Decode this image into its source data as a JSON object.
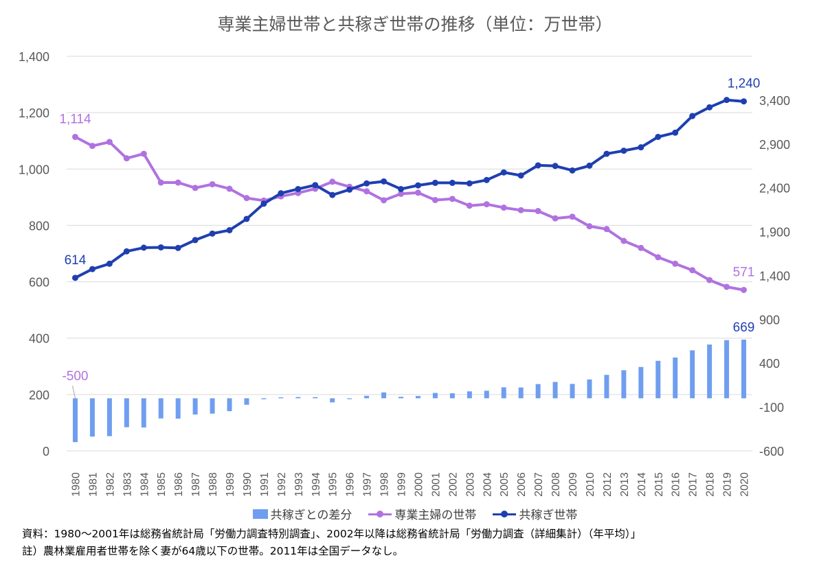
{
  "title": "専業主婦世帯と共稼ぎ世帯の推移（単位：万世帯）",
  "legend": {
    "diff_label": "共稼ぎとの差分",
    "housewife_label": "専業主婦の世帯",
    "dual_label": "共稼ぎ世帯"
  },
  "notes": {
    "source": "資料：1980～2001年は総務省統計局「労働力調査特別調査」、2002年以降は総務省統計局「労働力調査（詳細集計）（年平均）」",
    "note": "註）農林業雇用者世帯を除く妻が64歳以下の世帯。2011年は全国データなし。"
  },
  "colors": {
    "housewife": "#b072e0",
    "dual": "#1f3fb0",
    "diff": "#6f9ef0",
    "grid": "#d9d9d9",
    "axis_text": "#595959"
  },
  "chart_data": {
    "type": "line",
    "categories": [
      "1980",
      "1981",
      "1982",
      "1983",
      "1984",
      "1985",
      "1986",
      "1987",
      "1988",
      "1989",
      "1990",
      "1991",
      "1992",
      "1993",
      "1994",
      "1995",
      "1996",
      "1997",
      "1998",
      "1999",
      "2000",
      "2001",
      "2002",
      "2003",
      "2004",
      "2005",
      "2006",
      "2007",
      "2008",
      "2009",
      "2010",
      "2012",
      "2013",
      "2014",
      "2015",
      "2016",
      "2017",
      "2018",
      "2019",
      "2020"
    ],
    "series": [
      {
        "name": "専業主婦の世帯",
        "kind": "line",
        "axis": "left",
        "values": [
          1114,
          1082,
          1096,
          1038,
          1054,
          952,
          952,
          933,
          946,
          930,
          897,
          888,
          903,
          915,
          930,
          955,
          937,
          921,
          889,
          912,
          916,
          890,
          894,
          870,
          875,
          863,
          854,
          851,
          825,
          831,
          797,
          787,
          745,
          720,
          687,
          664,
          641,
          606,
          582,
          571
        ]
      },
      {
        "name": "共稼ぎ世帯",
        "kind": "line",
        "axis": "left",
        "values": [
          614,
          645,
          664,
          708,
          721,
          722,
          720,
          748,
          771,
          783,
          823,
          877,
          914,
          929,
          943,
          908,
          927,
          949,
          956,
          929,
          942,
          951,
          951,
          949,
          961,
          988,
          977,
          1013,
          1011,
          995,
          1012,
          1054,
          1065,
          1077,
          1114,
          1129,
          1188,
          1219,
          1245,
          1240
        ]
      },
      {
        "name": "共稼ぎとの差分",
        "kind": "bar",
        "axis": "right",
        "values": [
          -500,
          -437,
          -432,
          -330,
          -333,
          -230,
          -232,
          -185,
          -175,
          -147,
          -74,
          -11,
          11,
          14,
          13,
          -47,
          -10,
          28,
          67,
          17,
          26,
          61,
          57,
          79,
          86,
          125,
          123,
          162,
          186,
          164,
          215,
          267,
          320,
          357,
          427,
          465,
          547,
          613,
          663,
          669
        ]
      }
    ],
    "y_left": {
      "min": 0,
      "max": 1400,
      "ticks": [
        "0",
        "200",
        "400",
        "600",
        "800",
        "1,000",
        "1,200",
        "1,400"
      ]
    },
    "y_right": {
      "min": -600,
      "max": 3900,
      "ticks": [
        "-600",
        "-100",
        "400",
        "900",
        "1,400",
        "1,900",
        "2,400",
        "2,900",
        "3,400"
      ]
    },
    "annotations": [
      {
        "series": "共稼ぎ世帯",
        "index": 0,
        "text": "614",
        "pos": "above"
      },
      {
        "series": "共稼ぎ世帯",
        "index": 39,
        "text": "1,240",
        "pos": "above"
      },
      {
        "series": "専業主婦の世帯",
        "index": 0,
        "text": "1,114",
        "pos": "above"
      },
      {
        "series": "専業主婦の世帯",
        "index": 39,
        "text": "571",
        "pos": "above"
      },
      {
        "series": "共稼ぎとの差分",
        "index": 0,
        "text": "-500",
        "pos": "above"
      },
      {
        "series": "共稼ぎとの差分",
        "index": 39,
        "text": "669",
        "pos": "above"
      }
    ],
    "grid": true,
    "legend_position": "bottom"
  }
}
